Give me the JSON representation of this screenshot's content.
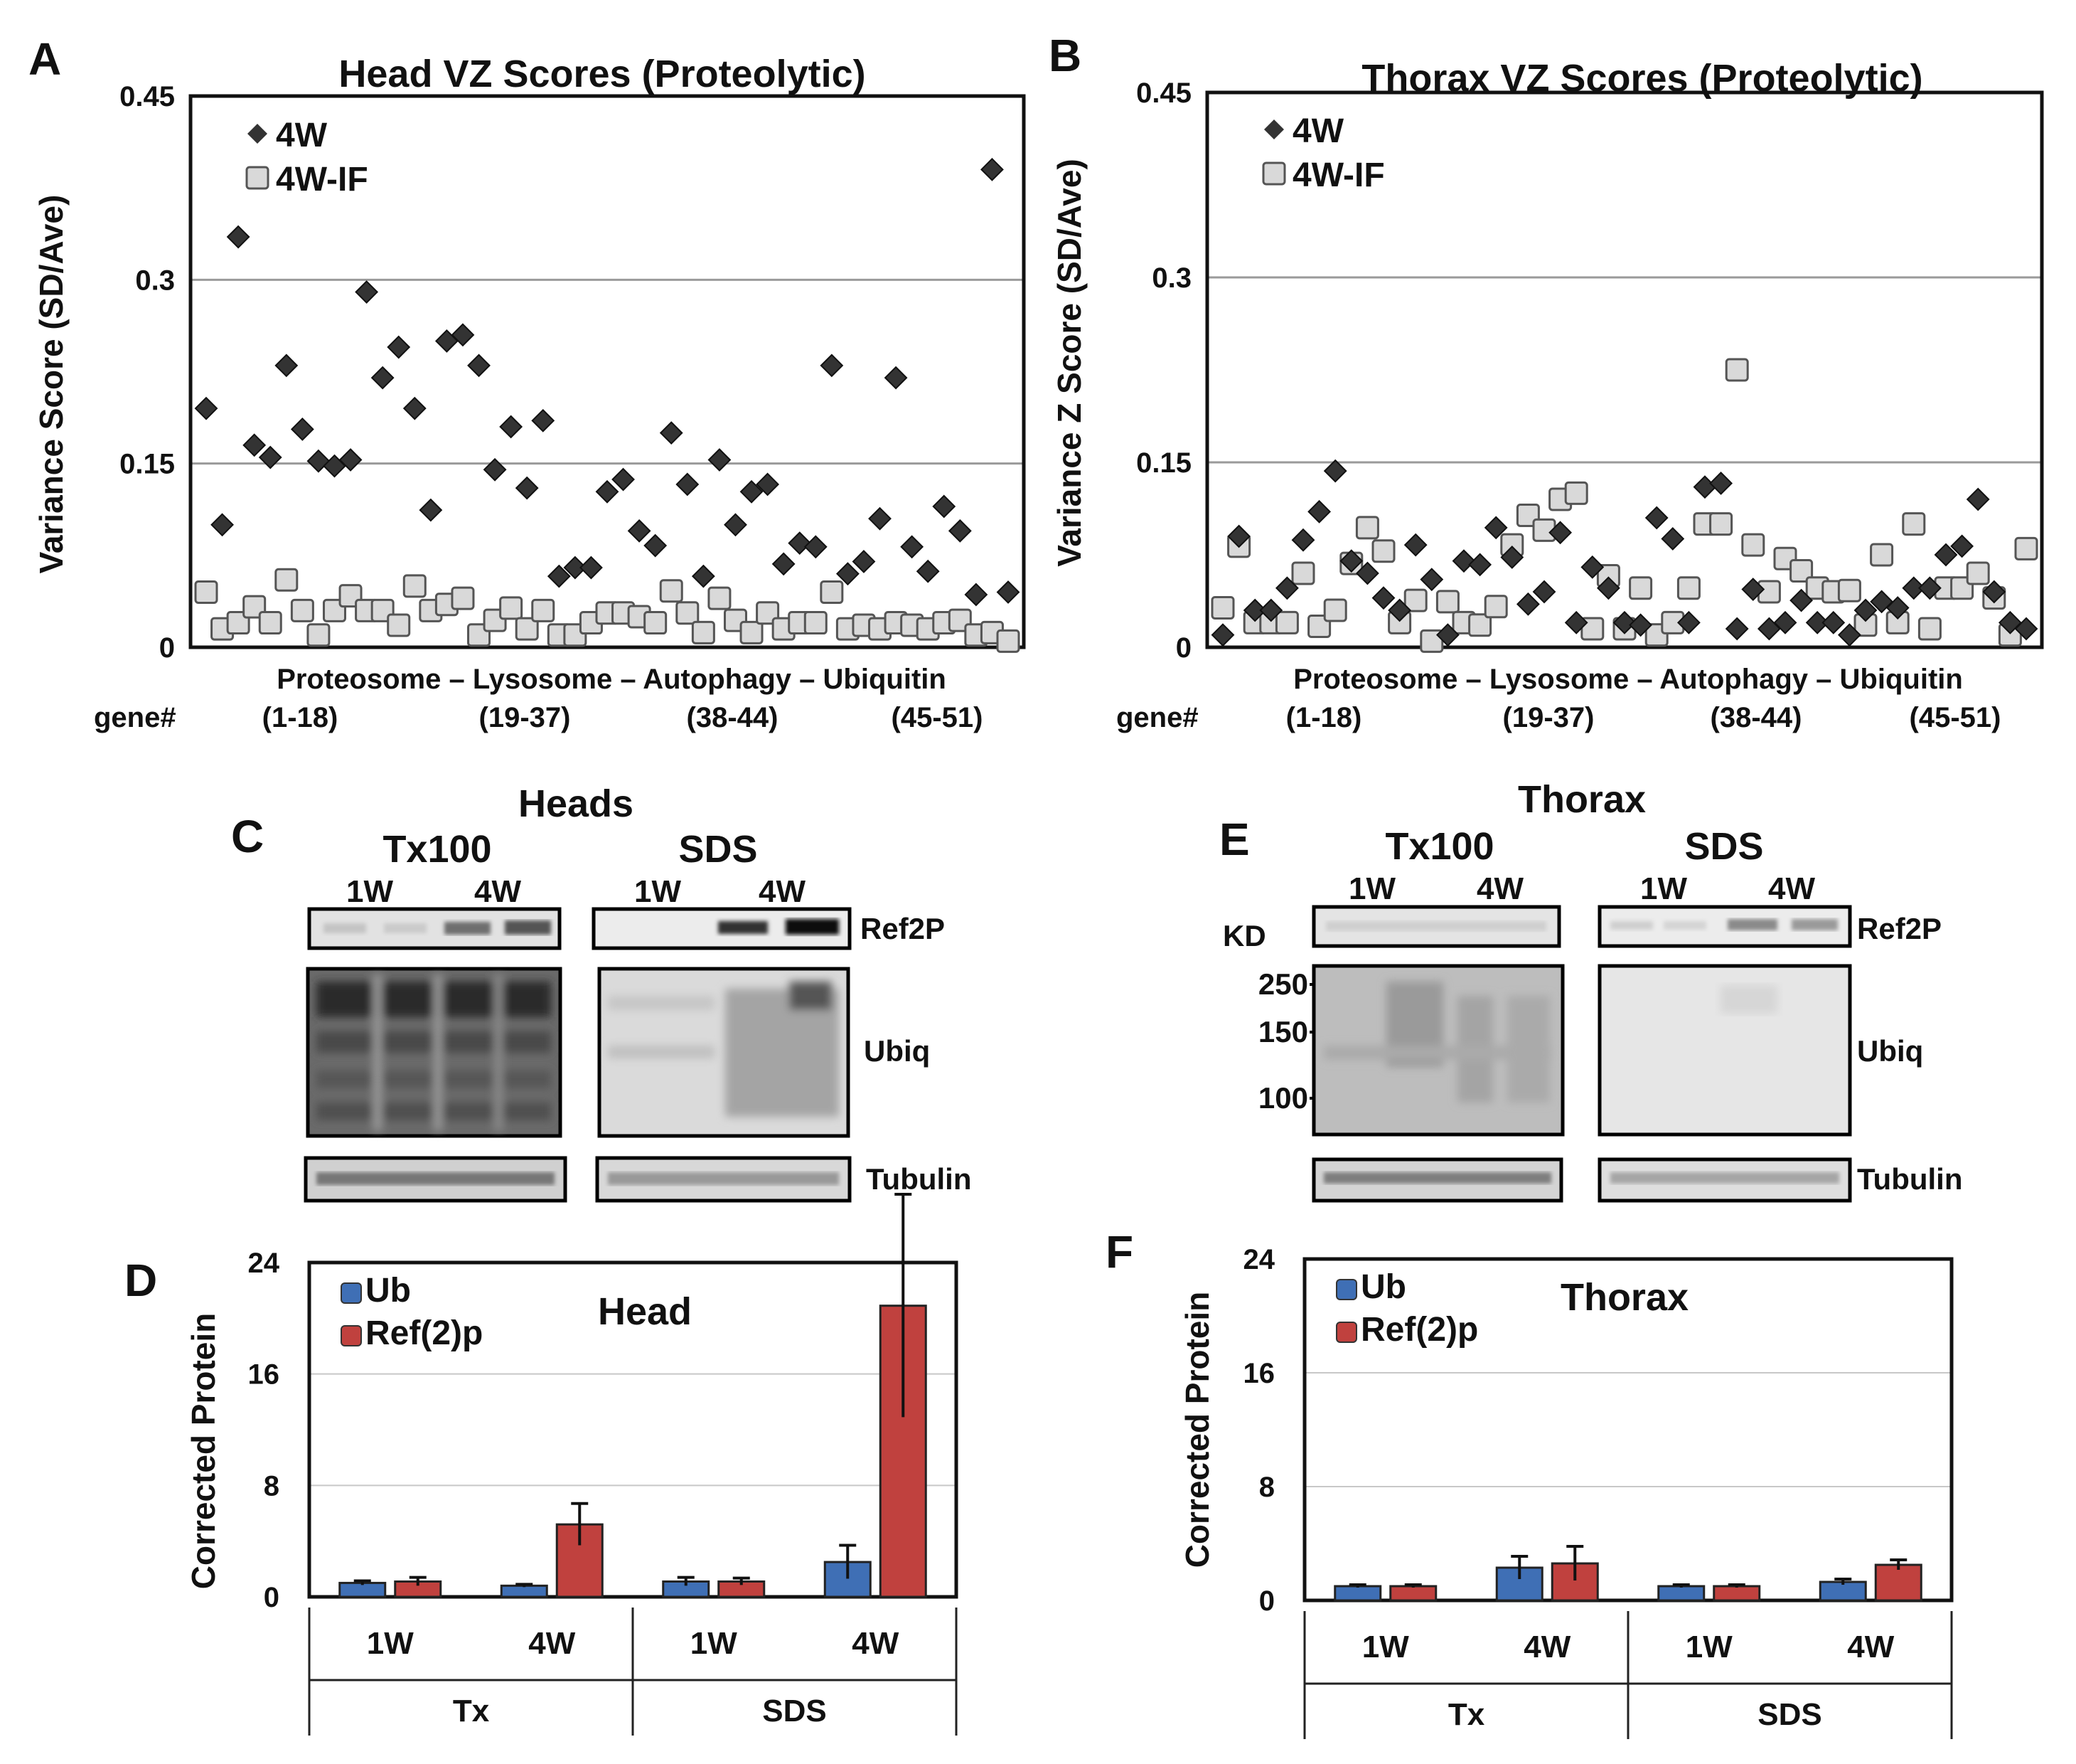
{
  "panels": {
    "A": {
      "letter": "A"
    },
    "B": {
      "letter": "B"
    },
    "C": {
      "letter": "C"
    },
    "D": {
      "letter": "D"
    },
    "E": {
      "letter": "E"
    },
    "F": {
      "letter": "F"
    }
  },
  "blots": {
    "heads": {
      "title": "Heads",
      "groups": [
        "Tx100",
        "SDS"
      ],
      "lanes": [
        "1W",
        "4W",
        "1W",
        "4W"
      ],
      "rows": [
        "Ref2P",
        "Ubiq",
        "Tubulin"
      ]
    },
    "thorax": {
      "title": "Thorax",
      "groups": [
        "Tx100",
        "SDS"
      ],
      "lanes": [
        "1W",
        "4W",
        "1W",
        "4W"
      ],
      "rows": [
        "Ref2P",
        "Ubiq",
        "Tubulin"
      ],
      "kd_label": "KD",
      "markers": [
        "250",
        "150",
        "100"
      ]
    }
  },
  "chart_data": [
    {
      "id": "A",
      "type": "scatter",
      "title": "Head VZ Scores (Proteolytic)",
      "ylabel": "Variance Score (SD/Ave)",
      "ylim": [
        0,
        0.45
      ],
      "yticks": [
        "0",
        "0.15",
        "0.3",
        "0.45"
      ],
      "grid": true,
      "category_label": "Proteosome – Lysosome – Autophagy – Ubiquitin",
      "gene_label": "gene#",
      "gene_ranges": [
        "(1-18)",
        "(19-37)",
        "(38-44)",
        "(45-51)"
      ],
      "legend": [
        "4W",
        "4W-IF"
      ],
      "series": [
        {
          "name": "4W",
          "marker": "diamond",
          "color": "#333333",
          "values": [
            0.195,
            0.1,
            0.335,
            0.165,
            0.155,
            0.23,
            0.178,
            0.152,
            0.148,
            0.153,
            0.29,
            0.22,
            0.245,
            0.195,
            0.112,
            0.25,
            0.255,
            0.23,
            0.145,
            0.18,
            0.13,
            0.185,
            0.058,
            0.065,
            0.065,
            0.127,
            0.137,
            0.095,
            0.083,
            0.175,
            0.133,
            0.058,
            0.153,
            0.1,
            0.127,
            0.133,
            0.068,
            0.085,
            0.082,
            0.23,
            0.06,
            0.07,
            0.105,
            0.22,
            0.082,
            0.062,
            0.115,
            0.095,
            0.043,
            0.39,
            0.045
          ]
        },
        {
          "name": "4W-IF",
          "marker": "square",
          "color": "#d9d9d9",
          "values": [
            0.045,
            0.015,
            0.02,
            0.033,
            0.02,
            0.055,
            0.03,
            0.01,
            0.03,
            0.042,
            0.03,
            0.03,
            0.018,
            0.05,
            0.03,
            0.035,
            0.04,
            0.01,
            0.022,
            0.032,
            0.015,
            0.03,
            0.01,
            0.01,
            0.02,
            0.028,
            0.028,
            0.025,
            0.02,
            0.046,
            0.028,
            0.012,
            0.04,
            0.022,
            0.012,
            0.028,
            0.015,
            0.02,
            0.02,
            0.045,
            0.015,
            0.018,
            0.015,
            0.02,
            0.018,
            0.015,
            0.02,
            0.022,
            0.01,
            0.012,
            0.005
          ]
        }
      ]
    },
    {
      "id": "B",
      "type": "scatter",
      "title": "Thorax VZ Scores (Proteolytic)",
      "ylabel": "Variance Z Score (SD/Ave)",
      "ylim": [
        0,
        0.45
      ],
      "yticks": [
        "0",
        "0.15",
        "0.3",
        "0.45"
      ],
      "grid": true,
      "category_label": "Proteosome – Lysosome – Autophagy – Ubiquitin",
      "gene_label": "gene#",
      "gene_ranges": [
        "(1-18)",
        "(19-37)",
        "(38-44)",
        "(45-51)"
      ],
      "legend": [
        "4W",
        "4W-IF"
      ],
      "series": [
        {
          "name": "4W",
          "marker": "diamond",
          "color": "#333333",
          "values": [
            0.01,
            0.09,
            0.03,
            0.03,
            0.048,
            0.087,
            0.11,
            0.143,
            0.07,
            0.06,
            0.04,
            0.03,
            0.083,
            0.055,
            0.01,
            0.07,
            0.067,
            0.097,
            0.073,
            0.035,
            0.045,
            0.093,
            0.02,
            0.065,
            0.048,
            0.02,
            0.018,
            0.105,
            0.088,
            0.02,
            0.13,
            0.133,
            0.015,
            0.047,
            0.015,
            0.02,
            0.038,
            0.02,
            0.02,
            0.01,
            0.03,
            0.037,
            0.032,
            0.048,
            0.048,
            0.075,
            0.082,
            0.12,
            0.045,
            0.02,
            0.015
          ]
        },
        {
          "name": "4W-IF",
          "marker": "square",
          "color": "#d9d9d9",
          "values": [
            0.032,
            0.082,
            0.02,
            0.02,
            0.02,
            0.06,
            0.017,
            0.03,
            0.068,
            0.097,
            0.078,
            0.02,
            0.038,
            0.005,
            0.037,
            0.02,
            0.018,
            0.033,
            0.083,
            0.107,
            0.095,
            0.12,
            0.125,
            0.015,
            0.058,
            0.015,
            0.048,
            0.01,
            0.02,
            0.048,
            0.1,
            0.1,
            0.225,
            0.083,
            0.045,
            0.072,
            0.062,
            0.048,
            0.045,
            0.046,
            0.018,
            0.075,
            0.02,
            0.1,
            0.015,
            0.048,
            0.048,
            0.06,
            0.04,
            0.01,
            0.08
          ]
        }
      ]
    },
    {
      "id": "D",
      "type": "bar",
      "title": "Head",
      "ylabel": "Corrected Protein",
      "ylim": [
        0,
        24
      ],
      "yticks": [
        "0",
        "8",
        "16",
        "24"
      ],
      "grid": true,
      "categories": [
        "1W",
        "4W",
        "1W",
        "4W"
      ],
      "groups": [
        "Tx",
        "SDS"
      ],
      "legend": [
        "Ub",
        "Ref(2)p"
      ],
      "series": [
        {
          "name": "Ub",
          "color": "#3f6fb5",
          "values": [
            1.0,
            0.8,
            1.1,
            2.5
          ],
          "errors": [
            0.15,
            0.1,
            0.3,
            1.2
          ]
        },
        {
          "name": "Ref(2)p",
          "color": "#c0413e",
          "values": [
            1.1,
            5.2,
            1.1,
            20.9
          ],
          "errors": [
            0.3,
            1.5,
            0.25,
            8.0
          ]
        }
      ]
    },
    {
      "id": "F",
      "type": "bar",
      "title": "Thorax",
      "ylabel": "Corrected Protein",
      "ylim": [
        0,
        24
      ],
      "yticks": [
        "0",
        "8",
        "16",
        "24"
      ],
      "grid": true,
      "categories": [
        "1W",
        "4W",
        "1W",
        "4W"
      ],
      "groups": [
        "Tx",
        "SDS"
      ],
      "legend": [
        "Ub",
        "Ref(2)p"
      ],
      "series": [
        {
          "name": "Ub",
          "color": "#3f6fb5",
          "values": [
            1.0,
            2.3,
            1.0,
            1.3
          ],
          "errors": [
            0.1,
            0.8,
            0.1,
            0.2
          ]
        },
        {
          "name": "Ref(2)p",
          "color": "#c0413e",
          "values": [
            1.0,
            2.6,
            1.0,
            2.5
          ],
          "errors": [
            0.1,
            1.2,
            0.1,
            0.35
          ]
        }
      ]
    }
  ]
}
